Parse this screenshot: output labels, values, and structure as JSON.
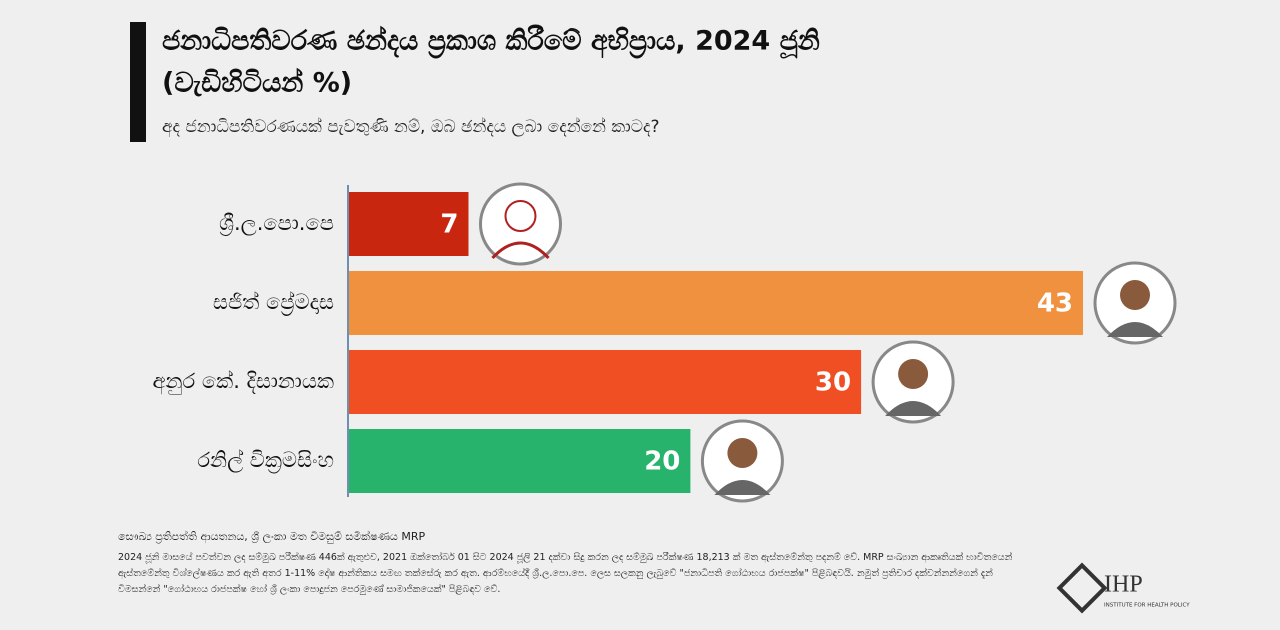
{
  "chart_data": {
    "type": "bar",
    "title": "ජනාධිපතිවරණ ඡන්දය ප්‍රකාශ කිරීමේ අභිප්‍රාය, 2024 ජූනි",
    "title_line2": "(වැඩිහිටියන් %)",
    "subtitle": "අද ජනාධිපතිවරණයක් පැවතුණි නම්, ඔබ ඡන්දය ලබා දෙන්නේ කාටද?",
    "categories": [
      "ශ්‍රී.ල.පො.පෙ",
      "සජිත් ප්‍රේමදාස",
      "අනුර කේ. දිසානායක",
      "රනිල් වික්‍රමසිංහ"
    ],
    "values": [
      7,
      43,
      30,
      20
    ],
    "colors": [
      "#c8260f",
      "#f0913f",
      "#f04e23",
      "#27b36b"
    ],
    "source": "සෞඛ්‍ය ප්‍රතිපත්ති ආයතනය, ශ්‍රී ලංකා මත විමසුම් සමීක්ෂණය MRP",
    "note": "2024 ජූනි මාසයේ පවත්වන ලද සම්මුඛ පරීක්ෂණ 446ක් ඇතුළුව, 2021 ඔක්තෝබර් 01 සිට 2024 ජූලි 21 දක්වා සිදු කරන ලද සම්මුඛ පරීක්ෂණ 18,213 ක් මත ඇස්තමේන්තු පදනම් වේ. MRP සංඛ්‍යාන ආකෘතියක් භාවිතයෙන් ඇස්තමේන්තු විශ්ලේෂණය කර ඇති අතර 1-11% දෝෂ ආන්තිකය සමඟ තක්සේරු කර ඇත. ආරම්භයේදී ශ්‍රී.ල.පො.පෙ. ලෙස සලකනු ලැබුවේ \"ජනාධිපති ගෝඨාභය රාජපක්ෂ\" පිළිබඳවයි. නමුත් ප්‍රතිචාර දක්වන්නන්ගෙන් දැන් විමසන්නේ \"ගෝඨාභය රාජපක්ෂ හෝ ශ්‍රී ලංකා පොදුජන පෙරමුණේ සාමාජිකයෙක්\" පිළිබඳව වේ.",
    "logo": "IHP",
    "logo_subtitle": "INSTITUTE FOR HEALTH POLICY"
  }
}
